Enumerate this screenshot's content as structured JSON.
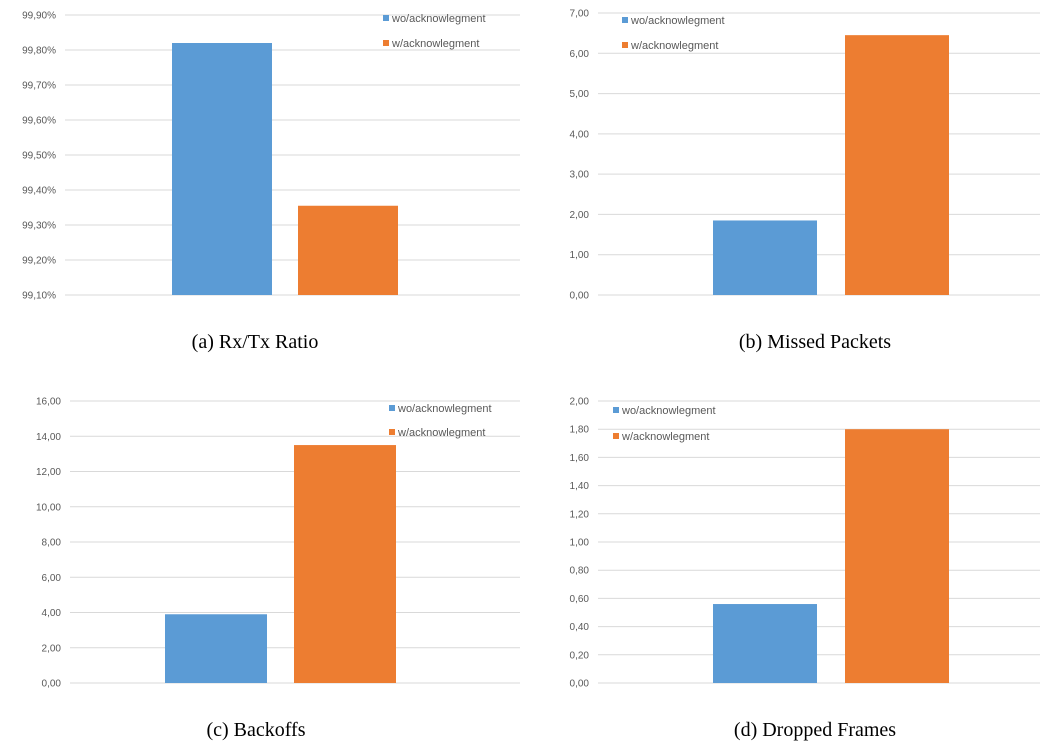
{
  "colors": {
    "series1": "#5b9bd5",
    "series2": "#ed7d31",
    "grid": "#d9d9d9",
    "tick_text": "#595959"
  },
  "chart_data": [
    {
      "type": "bar",
      "caption": "(a)  Rx/Tx Ratio",
      "title": "",
      "xlabel": "",
      "ylabel": "",
      "ylim": [
        99.1,
        99.9
      ],
      "y_ticks": [
        "99,10%",
        "99,20%",
        "99,30%",
        "99,40%",
        "99,50%",
        "99,60%",
        "99,70%",
        "99,80%",
        "99,90%"
      ],
      "grid": true,
      "legend_position": "top-right",
      "series": [
        {
          "name": "wo/acknowlegment",
          "values": [
            99.82
          ]
        },
        {
          "name": "w/acknowlegment",
          "values": [
            99.355
          ]
        }
      ]
    },
    {
      "type": "bar",
      "caption": "(b)  Missed Packets",
      "title": "",
      "xlabel": "",
      "ylabel": "",
      "ylim": [
        0,
        7
      ],
      "y_ticks": [
        "0,00",
        "1,00",
        "2,00",
        "3,00",
        "4,00",
        "5,00",
        "6,00",
        "7,00"
      ],
      "grid": true,
      "legend_position": "top-left",
      "series": [
        {
          "name": "wo/acknowlegment",
          "values": [
            1.85
          ]
        },
        {
          "name": "w/acknowlegment",
          "values": [
            6.45
          ]
        }
      ]
    },
    {
      "type": "bar",
      "caption": "(c)  Backoffs",
      "title": "",
      "xlabel": "",
      "ylabel": "",
      "ylim": [
        0,
        16
      ],
      "y_ticks": [
        "0,00",
        "2,00",
        "4,00",
        "6,00",
        "8,00",
        "10,00",
        "12,00",
        "14,00",
        "16,00"
      ],
      "grid": true,
      "legend_position": "top-right",
      "series": [
        {
          "name": "wo/acknowlegment",
          "values": [
            3.9
          ]
        },
        {
          "name": "w/acknowlegment",
          "values": [
            13.5
          ]
        }
      ]
    },
    {
      "type": "bar",
      "caption": "(d)  Dropped Frames",
      "title": "",
      "xlabel": "",
      "ylabel": "",
      "ylim": [
        0,
        2
      ],
      "y_ticks": [
        "0,00",
        "0,20",
        "0,40",
        "0,60",
        "0,80",
        "1,00",
        "1,20",
        "1,40",
        "1,60",
        "1,80",
        "2,00"
      ],
      "grid": true,
      "legend_position": "top-left",
      "series": [
        {
          "name": "wo/acknowlegment",
          "values": [
            0.56
          ]
        },
        {
          "name": "w/acknowlegment",
          "values": [
            1.8
          ]
        }
      ]
    }
  ]
}
